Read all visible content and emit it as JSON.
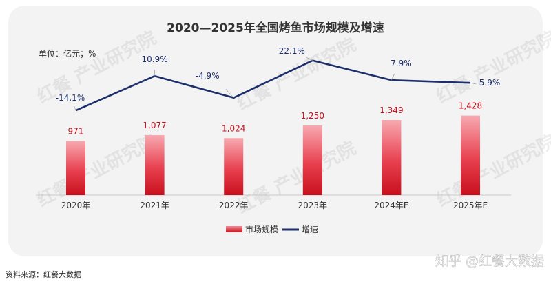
{
  "chart_data": {
    "type": "bar+line",
    "title": "2020—2025年全国烤鱼市场规模及增速",
    "unit_label": "单位：亿元；%",
    "categories": [
      "2020年",
      "2021年",
      "2022年",
      "2023年",
      "2024年E",
      "2025年E"
    ],
    "series": [
      {
        "name": "市场规模",
        "type": "bar",
        "values": [
          971,
          1077,
          1024,
          1250,
          1349,
          1428
        ],
        "labels": [
          "971",
          "1,077",
          "1,024",
          "1,250",
          "1,349",
          "1,428"
        ],
        "color": "#d9121f"
      },
      {
        "name": "增速",
        "type": "line",
        "values": [
          -14.1,
          10.9,
          -4.9,
          22.1,
          7.9,
          5.9
        ],
        "labels": [
          "-14.1%",
          "10.9%",
          "-4.9%",
          "22.1%",
          "7.9%",
          "5.9%"
        ],
        "color": "#1c2f6b"
      }
    ],
    "legend": "bottom",
    "grid": false
  },
  "watermark": "红餐 产业研究院",
  "source": "资料来源：红餐大数据",
  "credit": "知乎 @红餐大数据"
}
